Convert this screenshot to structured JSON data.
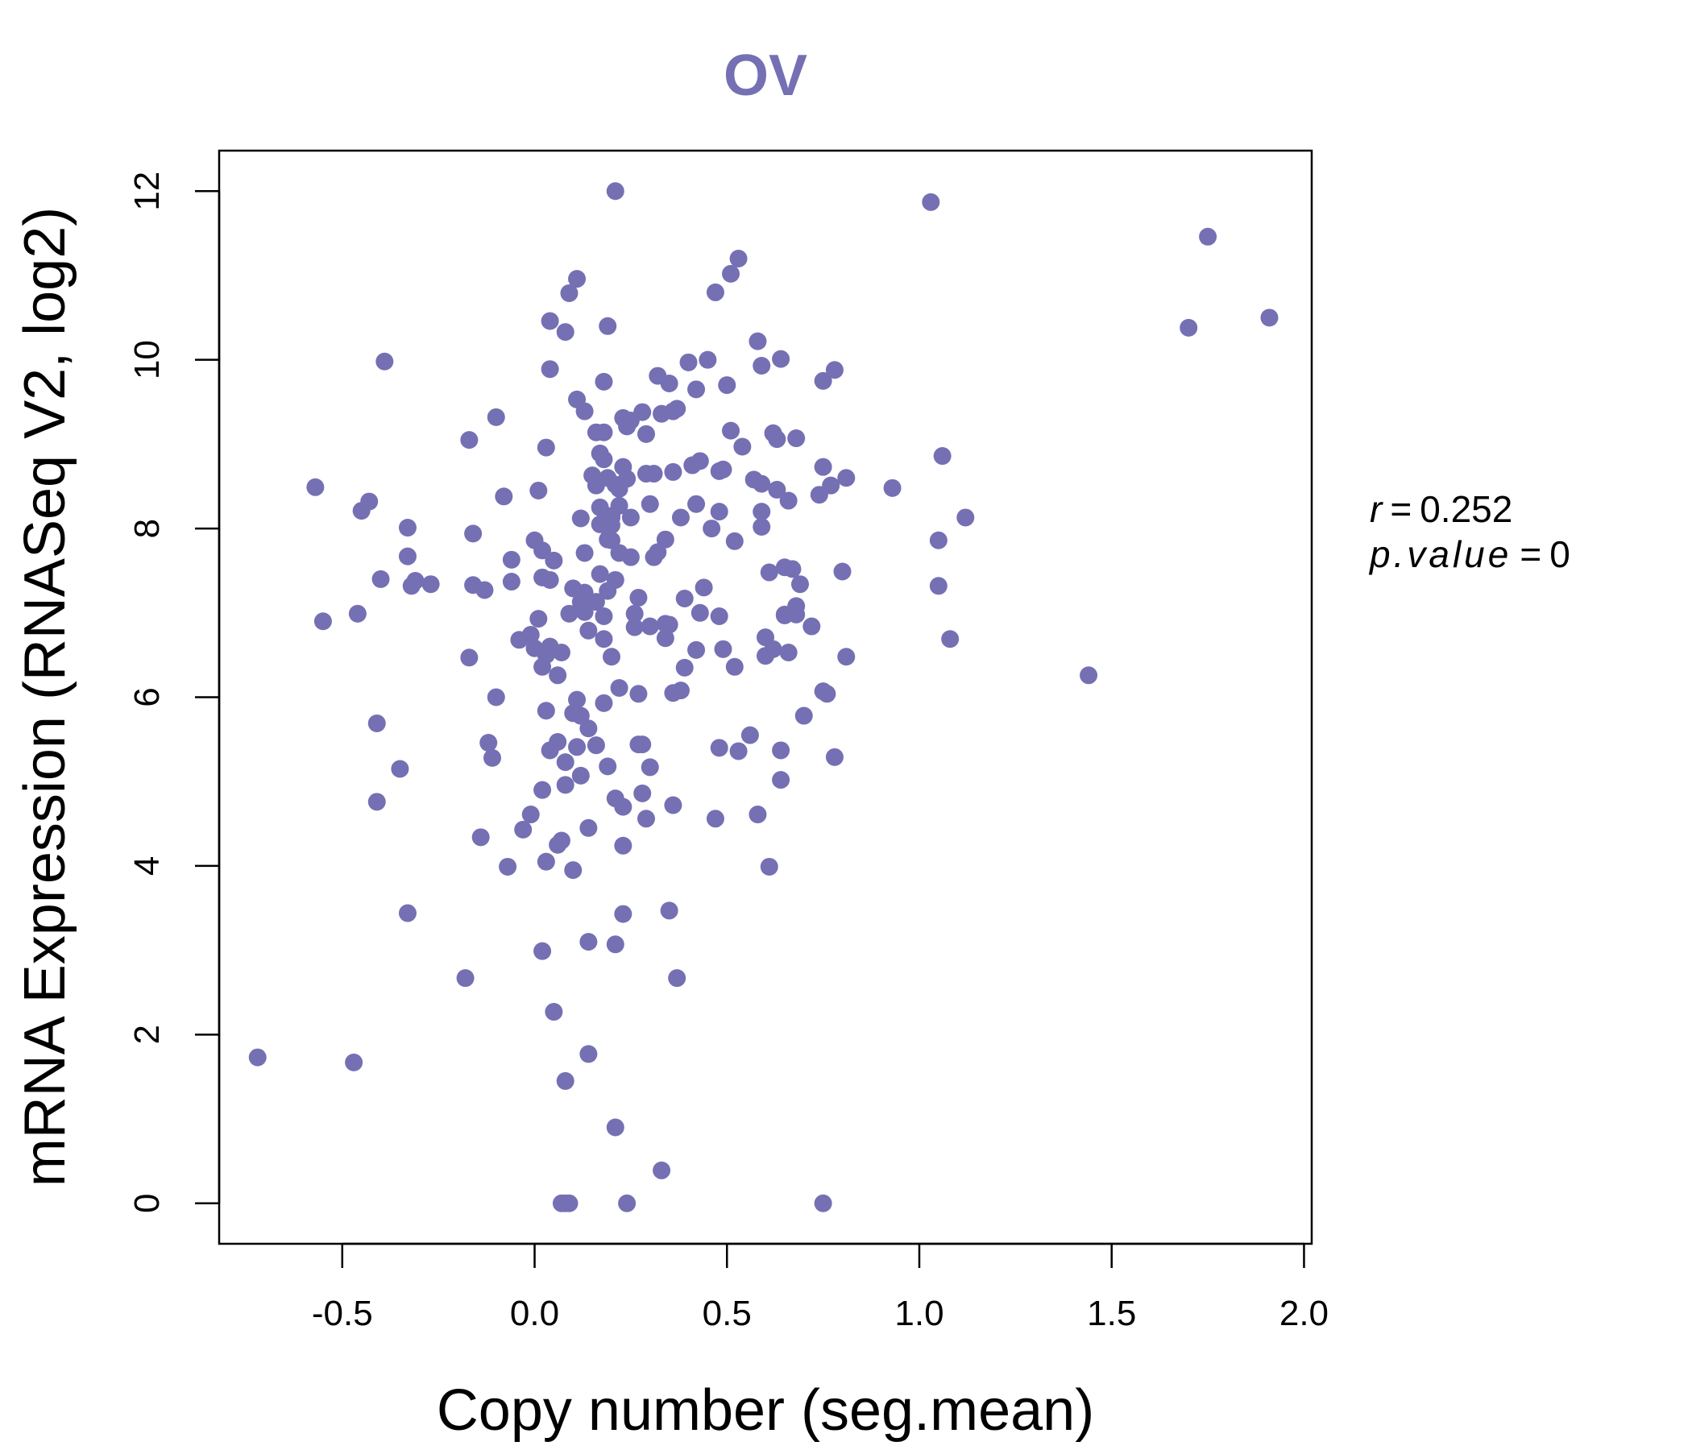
{
  "chart_data": {
    "type": "scatter",
    "title": "OV",
    "xlabel": "Copy number (seg.mean)",
    "ylabel": "mRNA Expression (RNASeq V2, log2)",
    "xlim": [
      -0.82,
      2.02
    ],
    "ylim": [
      -0.48,
      12.48
    ],
    "x_ticks": [
      "-0.5",
      "0.0",
      "0.5",
      "1.0",
      "1.5",
      "2.0"
    ],
    "y_ticks": [
      "0",
      "2",
      "4",
      "6",
      "8",
      "10",
      "12"
    ],
    "grid": false,
    "legend": "none",
    "point_color": "#7570b3",
    "annotation": {
      "r_label": "r",
      "r_value": "0.252",
      "p_label": "p.value",
      "p_value": "0"
    },
    "points": [
      [
        -0.72,
        1.73
      ],
      [
        -0.47,
        1.67
      ],
      [
        -0.57,
        8.49
      ],
      [
        -0.55,
        6.9
      ],
      [
        -0.46,
        6.99
      ],
      [
        -0.45,
        8.21
      ],
      [
        -0.43,
        8.32
      ],
      [
        -0.41,
        5.69
      ],
      [
        -0.41,
        4.76
      ],
      [
        -0.4,
        7.4
      ],
      [
        -0.39,
        9.98
      ],
      [
        -0.35,
        5.15
      ],
      [
        -0.33,
        8.01
      ],
      [
        -0.33,
        7.67
      ],
      [
        -0.33,
        3.44
      ],
      [
        -0.32,
        7.32
      ],
      [
        -0.31,
        7.38
      ],
      [
        -0.27,
        7.34
      ],
      [
        -0.18,
        2.67
      ],
      [
        -0.17,
        6.47
      ],
      [
        -0.17,
        9.05
      ],
      [
        -0.16,
        7.94
      ],
      [
        -0.16,
        7.33
      ],
      [
        -0.14,
        4.34
      ],
      [
        -0.13,
        7.27
      ],
      [
        -0.12,
        5.46
      ],
      [
        -0.11,
        5.28
      ],
      [
        -0.1,
        6.0
      ],
      [
        -0.1,
        9.32
      ],
      [
        -0.08,
        8.38
      ],
      [
        -0.07,
        3.99
      ],
      [
        -0.06,
        7.63
      ],
      [
        -0.06,
        7.37
      ],
      [
        -0.04,
        6.68
      ],
      [
        -0.03,
        4.43
      ],
      [
        -0.01,
        6.74
      ],
      [
        -0.01,
        4.61
      ],
      [
        0.0,
        6.58
      ],
      [
        0.0,
        7.86
      ],
      [
        0.01,
        8.45
      ],
      [
        0.01,
        6.93
      ],
      [
        0.02,
        7.42
      ],
      [
        0.02,
        6.36
      ],
      [
        0.02,
        4.9
      ],
      [
        0.02,
        7.74
      ],
      [
        0.02,
        2.99
      ],
      [
        0.03,
        5.84
      ],
      [
        0.03,
        4.05
      ],
      [
        0.03,
        6.5
      ],
      [
        0.03,
        8.96
      ],
      [
        0.04,
        6.6
      ],
      [
        0.04,
        7.39
      ],
      [
        0.04,
        10.46
      ],
      [
        0.04,
        9.89
      ],
      [
        0.04,
        5.37
      ],
      [
        0.05,
        7.62
      ],
      [
        0.05,
        2.27
      ],
      [
        0.06,
        6.26
      ],
      [
        0.06,
        5.47
      ],
      [
        0.06,
        4.25
      ],
      [
        0.07,
        6.53
      ],
      [
        0.07,
        4.3
      ],
      [
        0.07,
        0.0
      ],
      [
        0.08,
        1.45
      ],
      [
        0.08,
        5.23
      ],
      [
        0.08,
        10.33
      ],
      [
        0.08,
        4.96
      ],
      [
        0.08,
        0.0
      ],
      [
        0.09,
        6.99
      ],
      [
        0.09,
        10.79
      ],
      [
        0.09,
        0.0
      ],
      [
        0.1,
        7.29
      ],
      [
        0.1,
        5.81
      ],
      [
        0.1,
        3.95
      ],
      [
        0.11,
        9.53
      ],
      [
        0.11,
        5.41
      ],
      [
        0.11,
        10.96
      ],
      [
        0.11,
        5.97
      ],
      [
        0.12,
        7.13
      ],
      [
        0.12,
        8.12
      ],
      [
        0.12,
        5.07
      ],
      [
        0.12,
        5.78
      ],
      [
        0.13,
        9.39
      ],
      [
        0.13,
        7.24
      ],
      [
        0.13,
        7.71
      ],
      [
        0.13,
        7.01
      ],
      [
        0.14,
        5.63
      ],
      [
        0.14,
        4.45
      ],
      [
        0.14,
        6.79
      ],
      [
        0.14,
        3.1
      ],
      [
        0.14,
        1.77
      ],
      [
        0.15,
        8.63
      ],
      [
        0.16,
        7.13
      ],
      [
        0.16,
        8.51
      ],
      [
        0.16,
        5.43
      ],
      [
        0.16,
        9.14
      ],
      [
        0.17,
        8.89
      ],
      [
        0.17,
        8.25
      ],
      [
        0.17,
        7.46
      ],
      [
        0.17,
        8.05
      ],
      [
        0.18,
        6.96
      ],
      [
        0.18,
        9.74
      ],
      [
        0.18,
        6.69
      ],
      [
        0.18,
        5.93
      ],
      [
        0.18,
        9.14
      ],
      [
        0.18,
        8.82
      ],
      [
        0.19,
        7.87
      ],
      [
        0.19,
        8.6
      ],
      [
        0.19,
        10.4
      ],
      [
        0.19,
        7.26
      ],
      [
        0.19,
        5.18
      ],
      [
        0.2,
        8.13
      ],
      [
        0.2,
        8.04
      ],
      [
        0.2,
        7.86
      ],
      [
        0.2,
        6.48
      ],
      [
        0.2,
        8.15
      ],
      [
        0.21,
        12.0
      ],
      [
        0.21,
        7.39
      ],
      [
        0.21,
        8.52
      ],
      [
        0.21,
        4.8
      ],
      [
        0.21,
        0.9
      ],
      [
        0.21,
        3.07
      ],
      [
        0.22,
        7.71
      ],
      [
        0.22,
        8.27
      ],
      [
        0.22,
        8.47
      ],
      [
        0.22,
        6.11
      ],
      [
        0.23,
        8.73
      ],
      [
        0.23,
        9.31
      ],
      [
        0.23,
        4.24
      ],
      [
        0.23,
        4.7
      ],
      [
        0.23,
        3.43
      ],
      [
        0.24,
        8.59
      ],
      [
        0.24,
        9.21
      ],
      [
        0.24,
        0.0
      ],
      [
        0.25,
        8.13
      ],
      [
        0.25,
        7.66
      ],
      [
        0.25,
        9.28
      ],
      [
        0.26,
        6.99
      ],
      [
        0.26,
        6.83
      ],
      [
        0.27,
        5.44
      ],
      [
        0.27,
        6.04
      ],
      [
        0.27,
        7.18
      ],
      [
        0.28,
        9.38
      ],
      [
        0.28,
        5.44
      ],
      [
        0.28,
        4.86
      ],
      [
        0.29,
        8.65
      ],
      [
        0.29,
        9.12
      ],
      [
        0.29,
        4.56
      ],
      [
        0.3,
        6.84
      ],
      [
        0.3,
        8.29
      ],
      [
        0.3,
        5.17
      ],
      [
        0.31,
        8.65
      ],
      [
        0.31,
        7.66
      ],
      [
        0.32,
        9.81
      ],
      [
        0.32,
        7.72
      ],
      [
        0.33,
        9.36
      ],
      [
        0.33,
        0.39
      ],
      [
        0.34,
        7.87
      ],
      [
        0.34,
        6.87
      ],
      [
        0.34,
        6.7
      ],
      [
        0.35,
        3.47
      ],
      [
        0.35,
        6.86
      ],
      [
        0.35,
        9.72
      ],
      [
        0.36,
        8.67
      ],
      [
        0.36,
        6.05
      ],
      [
        0.36,
        4.72
      ],
      [
        0.36,
        9.39
      ],
      [
        0.37,
        9.42
      ],
      [
        0.37,
        2.67
      ],
      [
        0.38,
        6.08
      ],
      [
        0.38,
        8.13
      ],
      [
        0.39,
        6.35
      ],
      [
        0.39,
        7.17
      ],
      [
        0.4,
        9.97
      ],
      [
        0.41,
        8.75
      ],
      [
        0.42,
        9.65
      ],
      [
        0.42,
        6.56
      ],
      [
        0.42,
        8.29
      ],
      [
        0.43,
        8.8
      ],
      [
        0.43,
        7.0
      ],
      [
        0.44,
        7.3
      ],
      [
        0.45,
        10.0
      ],
      [
        0.46,
        8.0
      ],
      [
        0.47,
        10.8
      ],
      [
        0.47,
        4.56
      ],
      [
        0.48,
        5.4
      ],
      [
        0.48,
        8.68
      ],
      [
        0.48,
        8.2
      ],
      [
        0.48,
        6.96
      ],
      [
        0.49,
        6.57
      ],
      [
        0.49,
        8.7
      ],
      [
        0.5,
        9.7
      ],
      [
        0.51,
        11.02
      ],
      [
        0.51,
        9.16
      ],
      [
        0.52,
        7.85
      ],
      [
        0.52,
        6.36
      ],
      [
        0.53,
        5.36
      ],
      [
        0.53,
        11.2
      ],
      [
        0.54,
        8.97
      ],
      [
        0.56,
        5.55
      ],
      [
        0.57,
        8.58
      ],
      [
        0.58,
        10.22
      ],
      [
        0.58,
        4.61
      ],
      [
        0.59,
        8.53
      ],
      [
        0.59,
        9.93
      ],
      [
        0.59,
        8.2
      ],
      [
        0.59,
        8.02
      ],
      [
        0.6,
        6.71
      ],
      [
        0.6,
        6.49
      ],
      [
        0.61,
        7.48
      ],
      [
        0.61,
        3.99
      ],
      [
        0.62,
        9.13
      ],
      [
        0.62,
        6.57
      ],
      [
        0.63,
        9.06
      ],
      [
        0.63,
        8.46
      ],
      [
        0.64,
        10.01
      ],
      [
        0.64,
        5.02
      ],
      [
        0.64,
        5.37
      ],
      [
        0.65,
        7.54
      ],
      [
        0.65,
        6.98
      ],
      [
        0.65,
        6.97
      ],
      [
        0.66,
        8.33
      ],
      [
        0.66,
        6.53
      ],
      [
        0.67,
        7.52
      ],
      [
        0.68,
        9.07
      ],
      [
        0.68,
        7.08
      ],
      [
        0.68,
        6.98
      ],
      [
        0.69,
        7.34
      ],
      [
        0.7,
        5.78
      ],
      [
        0.72,
        6.84
      ],
      [
        0.74,
        8.4
      ],
      [
        0.75,
        9.75
      ],
      [
        0.75,
        8.73
      ],
      [
        0.75,
        6.07
      ],
      [
        0.75,
        0.0
      ],
      [
        0.76,
        6.04
      ],
      [
        0.77,
        8.51
      ],
      [
        0.78,
        9.88
      ],
      [
        0.78,
        5.29
      ],
      [
        0.8,
        7.49
      ],
      [
        0.81,
        8.6
      ],
      [
        0.81,
        6.48
      ],
      [
        0.93,
        8.48
      ],
      [
        1.03,
        11.87
      ],
      [
        1.05,
        7.86
      ],
      [
        1.05,
        7.32
      ],
      [
        1.06,
        8.86
      ],
      [
        1.08,
        6.69
      ],
      [
        1.12,
        8.13
      ],
      [
        1.44,
        6.26
      ],
      [
        1.7,
        10.38
      ],
      [
        1.75,
        11.46
      ],
      [
        1.91,
        10.5
      ]
    ]
  }
}
